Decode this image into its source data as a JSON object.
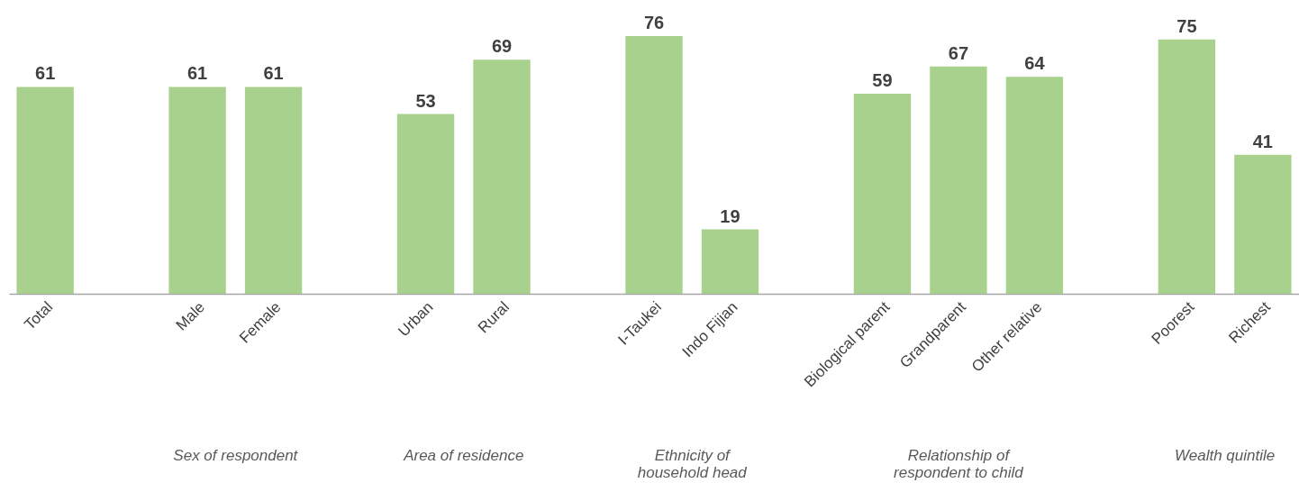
{
  "chart_data": {
    "type": "bar",
    "categories": [
      "Total",
      null,
      "Male",
      "Female",
      null,
      "Urban",
      "Rural",
      null,
      "I-Taukei",
      "Indo Fijian",
      null,
      "Biological parent",
      "Grandparent",
      "Other relative",
      null,
      "Poorest",
      "Richest"
    ],
    "values": [
      61,
      null,
      61,
      61,
      null,
      53,
      69,
      null,
      76,
      19,
      null,
      59,
      67,
      64,
      null,
      75,
      41
    ],
    "color": "#a9d18e",
    "data_labels": true,
    "grid": false,
    "annotations": [
      "Sex of respondent",
      "Area of residence",
      "Ethnicity of\nhousehold head",
      "Relationship of\nrespondent to child",
      "Wealth quintile"
    ]
  }
}
